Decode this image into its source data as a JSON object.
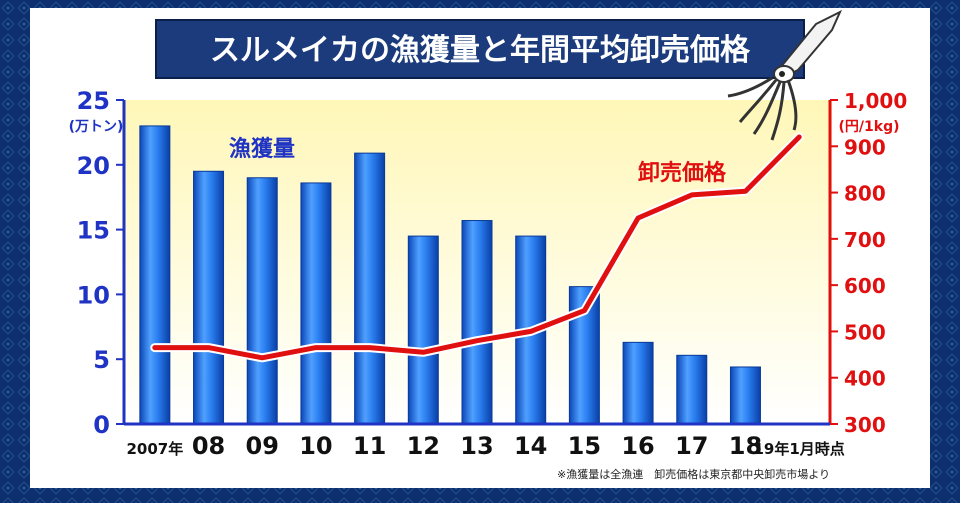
{
  "chart_data": {
    "type": "bar",
    "title": "スルメイカの漁獲量と年間平均卸売価格",
    "categories": [
      "2007年",
      "08",
      "09",
      "10",
      "11",
      "12",
      "13",
      "14",
      "15",
      "16",
      "17",
      "18",
      "19年1月時点"
    ],
    "series": [
      {
        "name": "漁獲量",
        "type": "bar",
        "axis": "left",
        "color": "#1a6fe0",
        "values": [
          23.0,
          19.5,
          19.0,
          18.6,
          20.9,
          14.5,
          15.7,
          14.5,
          10.6,
          6.3,
          5.3,
          4.4,
          null
        ]
      },
      {
        "name": "卸売価格",
        "type": "line",
        "axis": "right",
        "color": "#e01010",
        "values": [
          465,
          465,
          443,
          465,
          465,
          455,
          480,
          500,
          545,
          745,
          795,
          803,
          920
        ]
      }
    ],
    "y_left": {
      "min": 0,
      "max": 25,
      "ticks": [
        "0",
        "5",
        "10",
        "15",
        "20",
        "25"
      ],
      "unit": "(万トン)",
      "color": "#1f33c4"
    },
    "y_right": {
      "min": 300,
      "max": 1000,
      "ticks": [
        "300",
        "400",
        "500",
        "600",
        "700",
        "800",
        "900",
        "1,000"
      ],
      "unit": "(円/1kg)",
      "color": "#e01010"
    },
    "source_note": "※漁獲量は全漁連　卸売価格は東京都中央卸売市場より"
  },
  "colors": {
    "frame": "#0d2f6e",
    "plot_bg": "#fffbd0",
    "title_bg": "#1b3b7c"
  },
  "icons": {
    "decoration": "squid-icon"
  }
}
